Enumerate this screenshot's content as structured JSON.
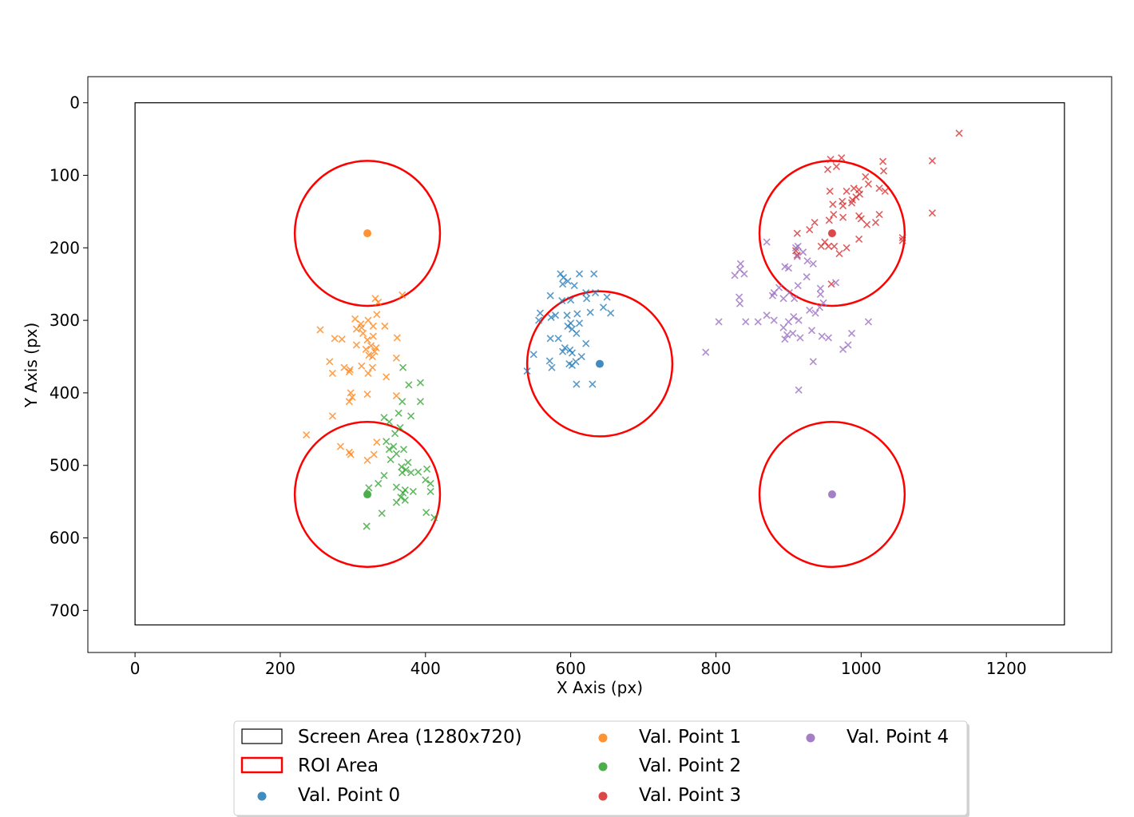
{
  "chart_data": {
    "type": "scatter",
    "title": "",
    "xlabel": "X Axis (px)",
    "ylabel": "Y Axis (px)",
    "xlim": [
      -65,
      1345
    ],
    "ylim": [
      758,
      -36
    ],
    "y_inverted": true,
    "grid": false,
    "x_ticks": [
      0,
      200,
      400,
      600,
      800,
      1000,
      1200
    ],
    "y_ticks": [
      0,
      100,
      200,
      300,
      400,
      500,
      600,
      700
    ],
    "legend_position": "below plot, centered",
    "legend_columns": 3,
    "screen_area": {
      "label": "Screen Area (1280x720)",
      "x": [
        0,
        1280
      ],
      "y": [
        0,
        720
      ],
      "color": "#000000"
    },
    "roi": {
      "label": "ROI Area",
      "radius": 100,
      "color": "#ff0000"
    },
    "series": [
      {
        "name": "Val. Point 0",
        "color": "#1f77b4",
        "target": [
          640,
          360
        ],
        "gaze_points": [
          [
            612,
            236
          ],
          [
            632,
            236
          ],
          [
            586,
            236
          ],
          [
            590,
            241
          ],
          [
            596,
            246
          ],
          [
            589,
            250
          ],
          [
            605,
            252
          ],
          [
            621,
            262
          ],
          [
            634,
            262
          ],
          [
            650,
            268
          ],
          [
            622,
            270
          ],
          [
            600,
            272
          ],
          [
            588,
            273
          ],
          [
            572,
            266
          ],
          [
            645,
            282
          ],
          [
            655,
            290
          ],
          [
            627,
            289
          ],
          [
            609,
            291
          ],
          [
            595,
            293
          ],
          [
            579,
            293
          ],
          [
            573,
            296
          ],
          [
            558,
            290
          ],
          [
            556,
            300
          ],
          [
            600,
            304
          ],
          [
            612,
            304
          ],
          [
            596,
            308
          ],
          [
            602,
            312
          ],
          [
            608,
            318
          ],
          [
            583,
            325
          ],
          [
            572,
            325
          ],
          [
            621,
            332
          ],
          [
            592,
            338
          ],
          [
            599,
            341
          ],
          [
            589,
            343
          ],
          [
            602,
            345
          ],
          [
            615,
            350
          ],
          [
            571,
            356
          ],
          [
            607,
            357
          ],
          [
            598,
            360
          ],
          [
            602,
            362
          ],
          [
            574,
            365
          ],
          [
            540,
            370
          ],
          [
            549,
            347
          ],
          [
            608,
            388
          ],
          [
            630,
            388
          ]
        ]
      },
      {
        "name": "Val. Point 1",
        "color": "#ff7f0e",
        "target": [
          320,
          180
        ],
        "gaze_points": [
          [
            368,
            265
          ],
          [
            331,
            270
          ],
          [
            335,
            275
          ],
          [
            333,
            292
          ],
          [
            303,
            298
          ],
          [
            321,
            300
          ],
          [
            328,
            308
          ],
          [
            311,
            305
          ],
          [
            312,
            310
          ],
          [
            305,
            312
          ],
          [
            344,
            308
          ],
          [
            361,
            324
          ],
          [
            314,
            318
          ],
          [
            328,
            322
          ],
          [
            255,
            313
          ],
          [
            275,
            325
          ],
          [
            285,
            326
          ],
          [
            320,
            327
          ],
          [
            305,
            334
          ],
          [
            325,
            335
          ],
          [
            332,
            338
          ],
          [
            318,
            340
          ],
          [
            330,
            343
          ],
          [
            322,
            348
          ],
          [
            327,
            350
          ],
          [
            360,
            352
          ],
          [
            268,
            357
          ],
          [
            312,
            363
          ],
          [
            288,
            365
          ],
          [
            327,
            365
          ],
          [
            296,
            368
          ],
          [
            295,
            371
          ],
          [
            272,
            373
          ],
          [
            321,
            373
          ],
          [
            346,
            378
          ],
          [
            297,
            400
          ],
          [
            320,
            402
          ],
          [
            360,
            404
          ],
          [
            299,
            406
          ],
          [
            295,
            412
          ],
          [
            272,
            432
          ],
          [
            236,
            458
          ],
          [
            333,
            468
          ],
          [
            283,
            474
          ],
          [
            295,
            482
          ],
          [
            297,
            485
          ],
          [
            329,
            485
          ],
          [
            320,
            493
          ]
        ]
      },
      {
        "name": "Val. Point 2",
        "color": "#2ca02c",
        "target": [
          320,
          540
        ],
        "gaze_points": [
          [
            369,
            365
          ],
          [
            393,
            386
          ],
          [
            377,
            389
          ],
          [
            393,
            412
          ],
          [
            368,
            412
          ],
          [
            380,
            432
          ],
          [
            363,
            428
          ],
          [
            343,
            434
          ],
          [
            350,
            440
          ],
          [
            365,
            448
          ],
          [
            358,
            456
          ],
          [
            346,
            467
          ],
          [
            356,
            474
          ],
          [
            350,
            478
          ],
          [
            370,
            478
          ],
          [
            360,
            484
          ],
          [
            352,
            492
          ],
          [
            376,
            496
          ],
          [
            367,
            502
          ],
          [
            373,
            506
          ],
          [
            368,
            510
          ],
          [
            380,
            510
          ],
          [
            390,
            509
          ],
          [
            343,
            514
          ],
          [
            335,
            525
          ],
          [
            360,
            530
          ],
          [
            372,
            534
          ],
          [
            383,
            536
          ],
          [
            369,
            538
          ],
          [
            366,
            544
          ],
          [
            372,
            548
          ],
          [
            360,
            551
          ],
          [
            402,
            505
          ],
          [
            400,
            520
          ],
          [
            407,
            525
          ],
          [
            407,
            536
          ],
          [
            401,
            565
          ],
          [
            412,
            572
          ],
          [
            340,
            566
          ],
          [
            319,
            584
          ],
          [
            322,
            531
          ]
        ]
      },
      {
        "name": "Val. Point 3",
        "color": "#d62728",
        "target": [
          960,
          180
        ],
        "gaze_points": [
          [
            1135,
            42
          ],
          [
            1098,
            80
          ],
          [
            1030,
            81
          ],
          [
            973,
            76
          ],
          [
            958,
            78
          ],
          [
            966,
            88
          ],
          [
            954,
            92
          ],
          [
            1031,
            94
          ],
          [
            1006,
            102
          ],
          [
            1010,
            112
          ],
          [
            990,
            118
          ],
          [
            1025,
            118
          ],
          [
            1033,
            122
          ],
          [
            997,
            120
          ],
          [
            980,
            122
          ],
          [
            998,
            126
          ],
          [
            993,
            130
          ],
          [
            988,
            134
          ],
          [
            974,
            136
          ],
          [
            961,
            140
          ],
          [
            975,
            142
          ],
          [
            987,
            138
          ],
          [
            962,
            154
          ],
          [
            1025,
            154
          ],
          [
            997,
            156
          ],
          [
            1000,
            160
          ],
          [
            975,
            158
          ],
          [
            956,
            162
          ],
          [
            1020,
            165
          ],
          [
            1008,
            168
          ],
          [
            936,
            165
          ],
          [
            929,
            175
          ],
          [
            950,
            192
          ],
          [
            955,
            198
          ],
          [
            963,
            198
          ],
          [
            980,
            200
          ],
          [
            970,
            208
          ],
          [
            997,
            188
          ],
          [
            1057,
            190
          ],
          [
            1098,
            152
          ],
          [
            957,
            122
          ],
          [
            945,
            198
          ],
          [
            910,
            204
          ],
          [
            912,
            210
          ],
          [
            912,
            180
          ],
          [
            1057,
            186
          ],
          [
            959,
            250
          ]
        ]
      },
      {
        "name": "Val. Point 4",
        "color": "#9467bd",
        "target": [
          960,
          540
        ],
        "gaze_points": [
          [
            870,
            192
          ],
          [
            910,
            200
          ],
          [
            913,
            198
          ],
          [
            920,
            206
          ],
          [
            912,
            212
          ],
          [
            926,
            218
          ],
          [
            934,
            222
          ],
          [
            834,
            222
          ],
          [
            833,
            230
          ],
          [
            826,
            238
          ],
          [
            900,
            228
          ],
          [
            895,
            226
          ],
          [
            839,
            236
          ],
          [
            925,
            240
          ],
          [
            913,
            252
          ],
          [
            887,
            255
          ],
          [
            965,
            248
          ],
          [
            944,
            256
          ],
          [
            880,
            262
          ],
          [
            878,
            266
          ],
          [
            901,
            262
          ],
          [
            944,
            264
          ],
          [
            908,
            270
          ],
          [
            893,
            270
          ],
          [
            832,
            268
          ],
          [
            833,
            277
          ],
          [
            948,
            276
          ],
          [
            943,
            282
          ],
          [
            929,
            286
          ],
          [
            937,
            290
          ],
          [
            907,
            295
          ],
          [
            870,
            293
          ],
          [
            914,
            300
          ],
          [
            900,
            302
          ],
          [
            880,
            300
          ],
          [
            858,
            302
          ],
          [
            804,
            302
          ],
          [
            841,
            302
          ],
          [
            1010,
            302
          ],
          [
            893,
            310
          ],
          [
            932,
            314
          ],
          [
            906,
            318
          ],
          [
            898,
            320
          ],
          [
            916,
            324
          ],
          [
            946,
            322
          ],
          [
            955,
            324
          ],
          [
            982,
            334
          ],
          [
            975,
            340
          ],
          [
            987,
            318
          ],
          [
            934,
            357
          ],
          [
            914,
            396
          ],
          [
            786,
            344
          ],
          [
            895,
            326
          ]
        ]
      }
    ]
  }
}
